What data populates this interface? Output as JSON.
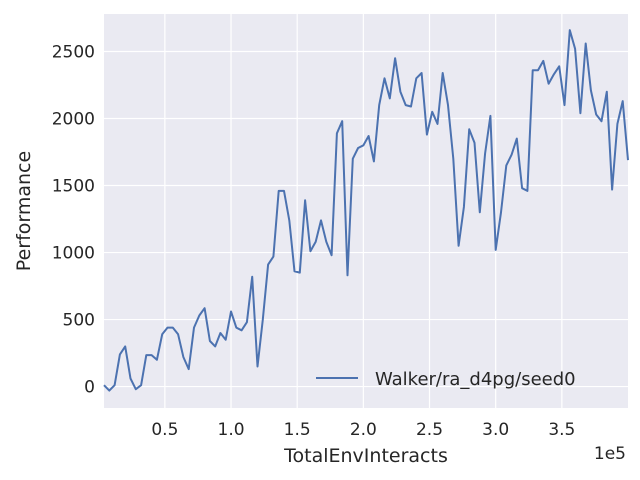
{
  "chart_data": {
    "type": "line",
    "xlabel": "TotalEnvInteracts",
    "ylabel": "Performance",
    "x_offset_text": "1e5",
    "xlim": [
      4000,
      400000
    ],
    "ylim": [
      -160,
      2780
    ],
    "x_tick_values": [
      0.5,
      1.0,
      1.5,
      2.0,
      2.5,
      3.0,
      3.5
    ],
    "x_tick_labels": [
      "0.5",
      "1.0",
      "1.5",
      "2.0",
      "2.5",
      "3.0",
      "3.5"
    ],
    "y_tick_values": [
      0,
      500,
      1000,
      1500,
      2000,
      2500
    ],
    "y_tick_labels": [
      "0",
      "500",
      "1000",
      "1500",
      "2000",
      "2500"
    ],
    "grid": true,
    "background": "#eaeaf2",
    "legend_position": "lower-right",
    "series": [
      {
        "name": "Walker/ra_d4pg/seed0",
        "color": "#4c72b0",
        "x": [
          4000,
          8000,
          12000,
          16000,
          20000,
          24000,
          28000,
          32000,
          36000,
          40000,
          44000,
          48000,
          52000,
          56000,
          60000,
          64000,
          68000,
          72000,
          76000,
          80000,
          84000,
          88000,
          92000,
          96000,
          100000,
          104000,
          108000,
          112000,
          116000,
          120000,
          124000,
          128000,
          132000,
          136000,
          140000,
          144000,
          148000,
          152000,
          156000,
          160000,
          164000,
          168000,
          172000,
          176000,
          180000,
          184000,
          188000,
          192000,
          196000,
          200000,
          204000,
          208000,
          212000,
          216000,
          220000,
          224000,
          228000,
          232000,
          236000,
          240000,
          244000,
          248000,
          252000,
          256000,
          260000,
          264000,
          268000,
          272000,
          276000,
          280000,
          284000,
          288000,
          292000,
          296000,
          300000,
          304000,
          308000,
          312000,
          316000,
          320000,
          324000,
          328000,
          332000,
          336000,
          340000,
          344000,
          348000,
          352000,
          356000,
          360000,
          364000,
          368000,
          372000,
          376000,
          380000,
          384000,
          388000,
          392000,
          396000,
          400000
        ],
        "y": [
          10,
          -30,
          10,
          240,
          300,
          60,
          -20,
          10,
          235,
          235,
          200,
          390,
          440,
          440,
          390,
          220,
          130,
          440,
          530,
          585,
          340,
          300,
          400,
          350,
          560,
          440,
          420,
          480,
          820,
          150,
          500,
          910,
          970,
          1460,
          1460,
          1240,
          860,
          850,
          1390,
          1010,
          1080,
          1240,
          1080,
          980,
          1890,
          1980,
          830,
          1700,
          1780,
          1800,
          1870,
          1680,
          2100,
          2300,
          2150,
          2450,
          2200,
          2100,
          2090,
          2300,
          2340,
          1880,
          2050,
          1960,
          2340,
          2100,
          1700,
          1050,
          1340,
          1920,
          1820,
          1300,
          1740,
          2020,
          1020,
          1300,
          1650,
          1730,
          1850,
          1480,
          1460,
          2360,
          2360,
          2430,
          2260,
          2330,
          2390,
          2100,
          2660,
          2520,
          2040,
          2560,
          2210,
          2030,
          1980,
          2200,
          1470,
          1960,
          2130,
          1690
        ]
      }
    ]
  }
}
